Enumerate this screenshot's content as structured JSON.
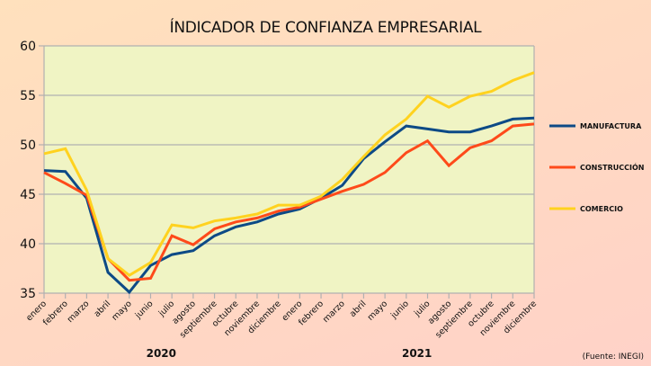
{
  "chart_data": {
    "type": "line",
    "title": "ÍNDICADOR DE CONFIANZA EMPRESARIAL",
    "xlabel": "",
    "ylabel": "",
    "ylim": [
      35,
      60
    ],
    "yticks": [
      35,
      40,
      45,
      50,
      55,
      60
    ],
    "grid": true,
    "legend_position": "right",
    "categories": [
      "enero",
      "febrero",
      "marzo",
      "abril",
      "mayo",
      "junio",
      "julio",
      "agosto",
      "septiembre",
      "octubre",
      "noviembre",
      "diciembre",
      "enero",
      "febrero",
      "marzo",
      "abril",
      "mayo",
      "junio",
      "julio",
      "agosto",
      "septiembre",
      "octubre",
      "noviembre",
      "diciembre"
    ],
    "year_groups": [
      {
        "label": "2020",
        "start": 0,
        "end": 11
      },
      {
        "label": "2021",
        "start": 12,
        "end": 23
      }
    ],
    "series": [
      {
        "name": "MANUFACTURA",
        "color": "#0d4a86",
        "values": [
          47.4,
          47.3,
          44.6,
          37.1,
          35.1,
          37.8,
          38.9,
          39.3,
          40.8,
          41.7,
          42.2,
          43.0,
          43.5,
          44.6,
          45.9,
          48.6,
          50.3,
          51.9,
          51.6,
          51.3,
          51.3,
          51.9,
          52.6,
          52.7
        ]
      },
      {
        "name": "CONSTRUCCIÓN",
        "color": "#fe4a1a",
        "values": [
          47.2,
          46.1,
          44.9,
          38.5,
          36.3,
          36.5,
          40.8,
          39.9,
          41.5,
          42.2,
          42.6,
          43.3,
          43.7,
          44.5,
          45.3,
          46.0,
          47.2,
          49.2,
          50.4,
          47.9,
          49.7,
          50.4,
          51.9,
          52.1
        ]
      },
      {
        "name": "COMERCIO",
        "color": "#ffd21f",
        "values": [
          49.1,
          49.6,
          45.4,
          38.5,
          36.8,
          38.1,
          41.9,
          41.6,
          42.3,
          42.6,
          43.0,
          43.9,
          43.9,
          44.8,
          46.5,
          48.8,
          51.0,
          52.6,
          54.9,
          53.8,
          54.9,
          55.4,
          56.5,
          57.3
        ]
      }
    ],
    "annotations": [
      "(Fuente: INEGI)"
    ]
  },
  "colors": {
    "plot_background": "#f0f4c4",
    "gridline": "#b0b0b0"
  }
}
